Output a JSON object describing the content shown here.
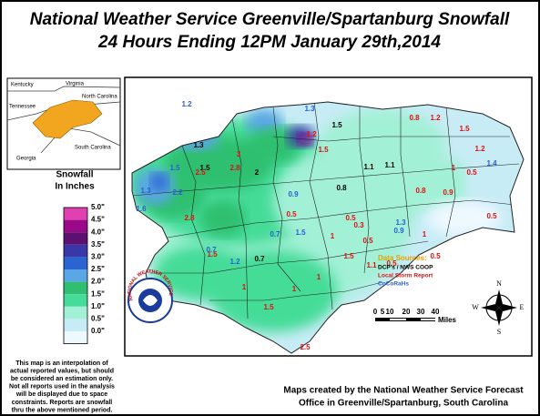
{
  "title": [
    "National Weather Service Greenville/Spartanburg Snowfall",
    "24 Hours Ending 12PM January 29th,2014"
  ],
  "inset": {
    "labels": [
      "Kentucky",
      "Virginia",
      "North Carolina",
      "Tennessee",
      "Georgia",
      "South Carolina"
    ]
  },
  "legend": {
    "title": [
      "Snowfall",
      "In Inches"
    ],
    "levels": [
      {
        "label": "5.0\"",
        "color": "#e040b0"
      },
      {
        "label": "4.5\"",
        "color": "#9a0a88"
      },
      {
        "label": "4.0\"",
        "color": "#5c1070"
      },
      {
        "label": "3.5\"",
        "color": "#3a38a8"
      },
      {
        "label": "3.0\"",
        "color": "#2a64d0"
      },
      {
        "label": "2.5\"",
        "color": "#5aa6e6"
      },
      {
        "label": "2.0\"",
        "color": "#2fbf70"
      },
      {
        "label": "1.5\"",
        "color": "#44dc98"
      },
      {
        "label": "1.0\"",
        "color": "#a2f0d6"
      },
      {
        "label": "0.5\"",
        "color": "#c8ecf6"
      },
      {
        "label": "0.0\"",
        "color": "#eef8ff"
      }
    ]
  },
  "sources": {
    "title": "Data Sources:",
    "items": [
      {
        "label": "DCP's / NWS COOP",
        "color": "#000000"
      },
      {
        "label": "Local Storm Report",
        "color": "#e01010"
      },
      {
        "label": "CoCoRaHs",
        "color": "#2a5cd8"
      }
    ]
  },
  "observations": {
    "coop": [
      "1.5",
      "1.1",
      "0.8",
      "0.7",
      "1.1",
      "1.3",
      "1.5",
      "2"
    ],
    "lsr": [
      "1.2",
      "0.8",
      "1.5",
      "1.2",
      "0.5",
      "1",
      "0.8",
      "0.9",
      "0.5",
      "0.5",
      "1",
      "1.5",
      "1",
      "1.5",
      "0.5",
      "2.5",
      "2.8",
      "2.5",
      "3",
      "2.8",
      "1.5",
      "1.5",
      "1",
      "1.1",
      "0.5",
      "0.5",
      "1",
      "1",
      "0.5",
      "0.3",
      "1.2",
      "1.5"
    ],
    "cocorahs": [
      "1.3",
      "1.5",
      "1.2",
      "0.9",
      "1.3",
      "0.7",
      "1.2",
      "0.7",
      "1.4",
      "0.9",
      "1.5",
      "2.2",
      "1.6",
      "1.3"
    ]
  },
  "scale": {
    "ticks": [
      "0",
      "5",
      "10",
      "20",
      "30",
      "40"
    ],
    "unit": "Miles"
  },
  "compass": [
    "N",
    "E",
    "S",
    "W"
  ],
  "logo_text": "NATIONAL WEATHER SERVICE",
  "disclaimer": [
    "This map is an interpolation of",
    "actual reported values, but should",
    "be considered an estimation only.",
    "Not all reports used in the analysis",
    "will be displayed due to space",
    "constraints. Reports are snowfall",
    "thru the above mentioned period."
  ],
  "credit": [
    "Maps created by the National Weather Service Forecast",
    "Office in Greenville/Spartanburg, South Carolina"
  ]
}
